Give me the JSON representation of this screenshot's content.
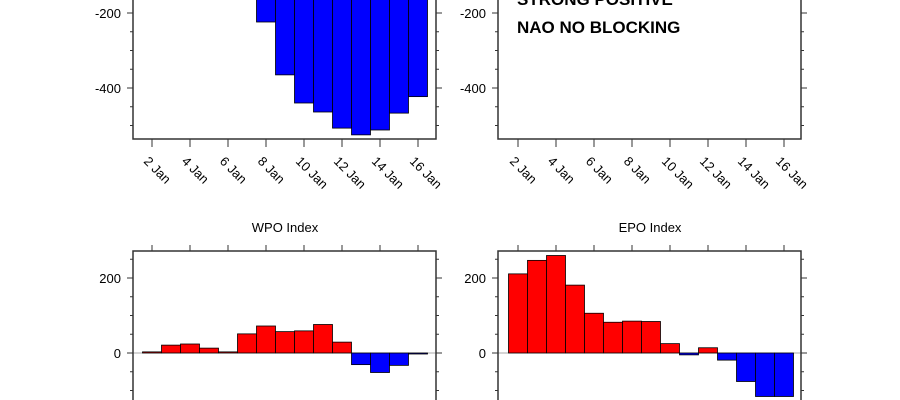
{
  "chart_data": [
    {
      "type": "bar",
      "title": "",
      "x": [
        "2 Jan",
        "3 Jan",
        "4 Jan",
        "5 Jan",
        "6 Jan",
        "7 Jan",
        "8 Jan",
        "9 Jan",
        "10 Jan",
        "11 Jan",
        "12 Jan",
        "13 Jan",
        "14 Jan",
        "15 Jan",
        "16 Jan"
      ],
      "values": [
        null,
        null,
        null,
        null,
        null,
        null,
        -224,
        -365,
        -440,
        -464,
        -507,
        -525,
        -512,
        -467,
        -423
      ],
      "yticks": [
        "-200",
        "-400"
      ],
      "ytick_values": [
        -200,
        -400
      ],
      "xticks": [
        "2 Jan",
        "4 Jan",
        "6 Jan",
        "8 Jan",
        "10 Jan",
        "12 Jan",
        "14 Jan",
        "16 Jan"
      ],
      "ylim_visible": [
        -536,
        -165
      ],
      "positive_color": "#ff0000",
      "negative_color": "#0000ff"
    },
    {
      "type": "bar",
      "title": "",
      "annotation": [
        "STRONG POSITIVE",
        "NAO NO BLOCKING"
      ],
      "x": [],
      "values": [],
      "yticks": [
        "-200",
        "-400"
      ],
      "ytick_values": [
        -200,
        -400
      ],
      "xticks": [
        "2 Jan",
        "4 Jan",
        "6 Jan",
        "8 Jan",
        "10 Jan",
        "12 Jan",
        "14 Jan",
        "16 Jan"
      ],
      "ylim_visible": [
        -536,
        -165
      ]
    },
    {
      "type": "bar",
      "title": "WPO Index",
      "x": [
        "2 Jan",
        "3 Jan",
        "4 Jan",
        "5 Jan",
        "6 Jan",
        "7 Jan",
        "8 Jan",
        "9 Jan",
        "10 Jan",
        "11 Jan",
        "12 Jan",
        "13 Jan",
        "14 Jan",
        "15 Jan",
        "16 Jan"
      ],
      "values": [
        3,
        21,
        24,
        13,
        3,
        51,
        72,
        57,
        59,
        76,
        29,
        -31,
        -52,
        -33,
        -2
      ],
      "yticks": [
        "200",
        "0"
      ],
      "ytick_values": [
        200,
        0
      ],
      "ylim_visible": [
        -120,
        272
      ],
      "positive_color": "#ff0000",
      "negative_color": "#0000ff"
    },
    {
      "type": "bar",
      "title": "EPO Index",
      "x": [
        "2 Jan",
        "3 Jan",
        "4 Jan",
        "5 Jan",
        "6 Jan",
        "7 Jan",
        "8 Jan",
        "9 Jan",
        "10 Jan",
        "11 Jan",
        "12 Jan",
        "13 Jan",
        "14 Jan",
        "15 Jan",
        "16 Jan"
      ],
      "values": [
        211,
        247,
        260,
        181,
        106,
        82,
        85,
        84,
        25,
        -5,
        14,
        -19,
        -76,
        -116,
        -116
      ],
      "yticks": [
        "200",
        "0"
      ],
      "ytick_values": [
        200,
        0
      ],
      "ylim_visible": [
        -120,
        272
      ],
      "positive_color": "#ff0000",
      "negative_color": "#0000ff"
    }
  ]
}
